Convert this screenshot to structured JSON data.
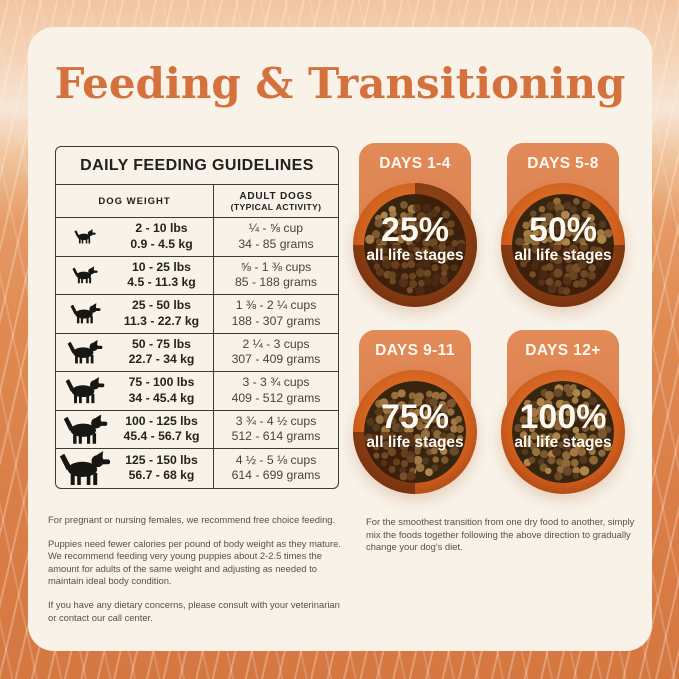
{
  "page": {
    "title": "Feeding & Transitioning"
  },
  "colors": {
    "accent_orange": "#d4713c",
    "card_background": "#f8f2e8",
    "tab_orange": "#e28a58",
    "bowl_rim_orange": "#d2611f",
    "background_fur_orange": "#db7f49",
    "table_ink": "#21211e"
  },
  "table": {
    "title": "DAILY FEEDING GUIDELINES",
    "col1": "DOG WEIGHT",
    "col2_line1": "ADULT DOGS",
    "col2_line2": "(TYPICAL ACTIVITY)",
    "rows": [
      {
        "lbs": "2 - 10 lbs",
        "kg": "0.9 - 4.5 kg",
        "cups": "¼ - ⅝ cup",
        "grams": "34 - 85 grams"
      },
      {
        "lbs": "10 - 25 lbs",
        "kg": "4.5 - 11.3 kg",
        "cups": "⅝ - 1 ⅜ cups",
        "grams": "85 - 188 grams"
      },
      {
        "lbs": "25 - 50 lbs",
        "kg": "11.3 - 22.7 kg",
        "cups": "1 ⅜ - 2 ¼ cups",
        "grams": "188 - 307 grams"
      },
      {
        "lbs": "50 - 75 lbs",
        "kg": "22.7 - 34 kg",
        "cups": "2 ¼ - 3 cups",
        "grams": "307 - 409 grams"
      },
      {
        "lbs": "75 - 100 lbs",
        "kg": "34 - 45.4 kg",
        "cups": "3 - 3 ¾ cups",
        "grams": "409 - 512 grams"
      },
      {
        "lbs": "100 - 125 lbs",
        "kg": "45.4 - 56.7 kg",
        "cups": "3 ¾ - 4 ½ cups",
        "grams": "512 - 614 grams"
      },
      {
        "lbs": "125 - 150 lbs",
        "kg": "56.7 - 68 kg",
        "cups": "4 ½ - 5 ⅛ cups",
        "grams": "614 - 699 grams"
      }
    ]
  },
  "transition": {
    "steps": [
      {
        "days": "DAYS 1-4",
        "percent": 25,
        "percent_label": "25%",
        "stages_label": "all life stages"
      },
      {
        "days": "DAYS 5-8",
        "percent": 50,
        "percent_label": "50%",
        "stages_label": "all life stages"
      },
      {
        "days": "DAYS 9-11",
        "percent": 75,
        "percent_label": "75%",
        "stages_label": "all life stages"
      },
      {
        "days": "DAYS 12+",
        "percent": 100,
        "percent_label": "100%",
        "stages_label": "all life stages"
      }
    ]
  },
  "notes_left": [
    "For pregnant or nursing females, we recommend free choice feeding.",
    "Puppies need fewer calories per pound of body weight as they mature. We recommend feeding very young puppies about 2-2.5 times the amount for adults of the same weight and adjusting as needed to maintain ideal body condition.",
    "If you have any dietary concerns, please consult with your veterinarian or contact our call center."
  ],
  "notes_right": "For the smoothest transition from one dry food to another, simply mix the foods together following the above direction to gradually change your dog's diet."
}
